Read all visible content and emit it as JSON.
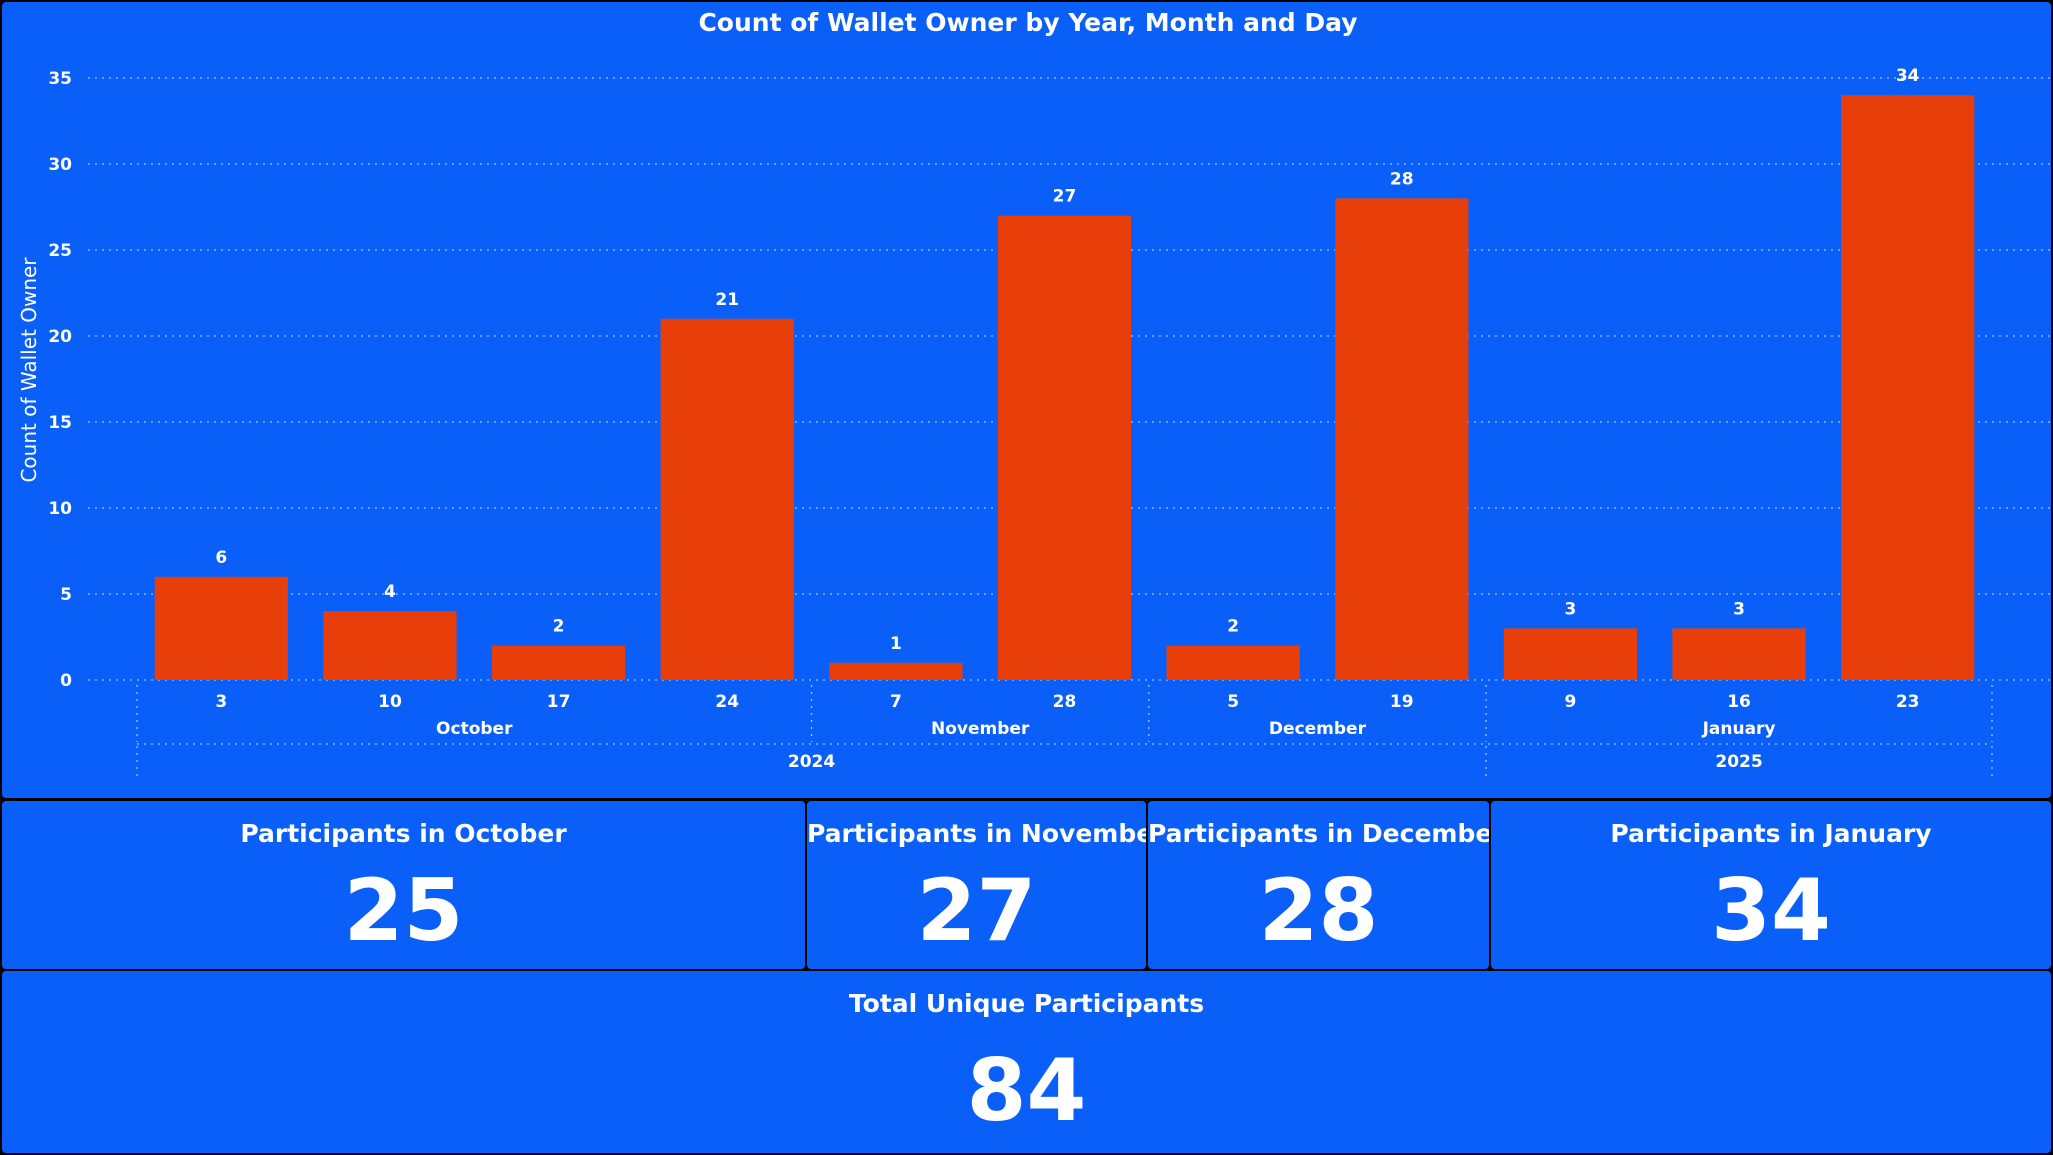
{
  "chart_data": {
    "type": "bar",
    "title": "Count of Wallet Owner by Year, Month and Day",
    "ylabel": "Count of Wallet Owner",
    "xlabel": "",
    "ylim": [
      0,
      35
    ],
    "yticks": [
      0,
      5,
      10,
      15,
      20,
      25,
      30,
      35
    ],
    "grid": true,
    "bar_color": "#e83e0a",
    "categories": [
      "3",
      "10",
      "17",
      "24",
      "7",
      "28",
      "5",
      "19",
      "9",
      "16",
      "23"
    ],
    "values": [
      6,
      4,
      2,
      21,
      1,
      27,
      2,
      28,
      3,
      3,
      34
    ],
    "months": [
      {
        "label": "October",
        "count": 4
      },
      {
        "label": "November",
        "count": 2
      },
      {
        "label": "December",
        "count": 2
      },
      {
        "label": "January",
        "count": 3
      }
    ],
    "years": [
      {
        "label": "2024",
        "count": 8
      },
      {
        "label": "2025",
        "count": 3
      }
    ]
  },
  "cards": {
    "october": {
      "title": "Participants in October",
      "value": "25"
    },
    "november": {
      "title": "Participants in November",
      "value": "27"
    },
    "december": {
      "title": "Participants in December",
      "value": "28"
    },
    "january": {
      "title": "Participants in January",
      "value": "34"
    },
    "total": {
      "title": "Total Unique Participants",
      "value": "84"
    }
  },
  "colors": {
    "background": "#0a5ff8",
    "bar": "#e83e0a",
    "text": "#ffffff"
  }
}
